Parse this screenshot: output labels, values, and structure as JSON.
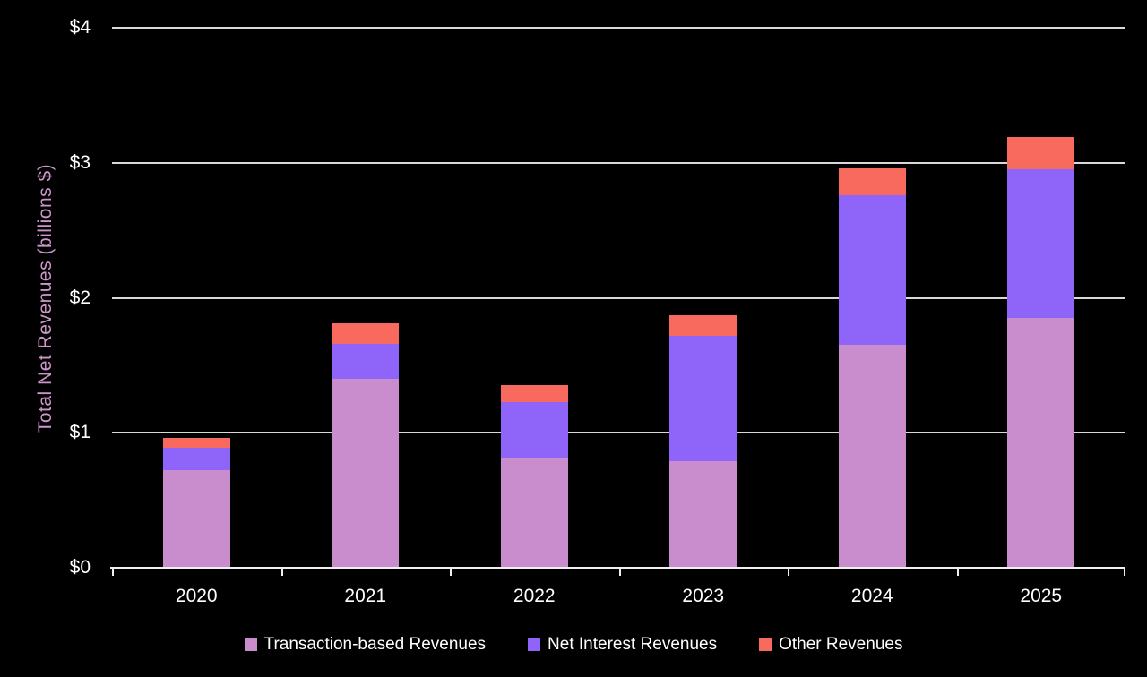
{
  "chart_data": {
    "type": "bar",
    "stacked": true,
    "title": "",
    "xlabel": "",
    "ylabel": "Total Net Revenues (billions $)",
    "categories": [
      "2020",
      "2021",
      "2022",
      "2023",
      "2024",
      "2025"
    ],
    "series": [
      {
        "name": "Transaction-based Revenues",
        "color": "#c98ccd",
        "values": [
          0.72,
          1.4,
          0.81,
          0.79,
          1.65,
          1.85
        ]
      },
      {
        "name": "Net Interest Revenues",
        "color": "#8f64f8",
        "values": [
          0.17,
          0.26,
          0.42,
          0.93,
          1.11,
          1.1
        ]
      },
      {
        "name": "Other Revenues",
        "color": "#f8695e",
        "values": [
          0.07,
          0.15,
          0.12,
          0.15,
          0.2,
          0.24
        ]
      }
    ],
    "totals": [
      0.96,
      1.81,
      1.35,
      1.87,
      2.96,
      3.19
    ],
    "ylim": [
      0,
      4
    ],
    "yticks": [
      {
        "value": 0,
        "label": "$0"
      },
      {
        "value": 1,
        "label": "$1"
      },
      {
        "value": 2,
        "label": "$2"
      },
      {
        "value": 3,
        "label": "$3"
      },
      {
        "value": 4,
        "label": "$4"
      }
    ],
    "grid": true,
    "legend_position": "bottom",
    "colors": {
      "background": "#000000",
      "gridline": "#d9d9d9",
      "axis_line": "#efefef",
      "tick_label": "#ffffff",
      "ylabel_text": "#cd97c9",
      "legend_text": "#ffffff"
    }
  }
}
